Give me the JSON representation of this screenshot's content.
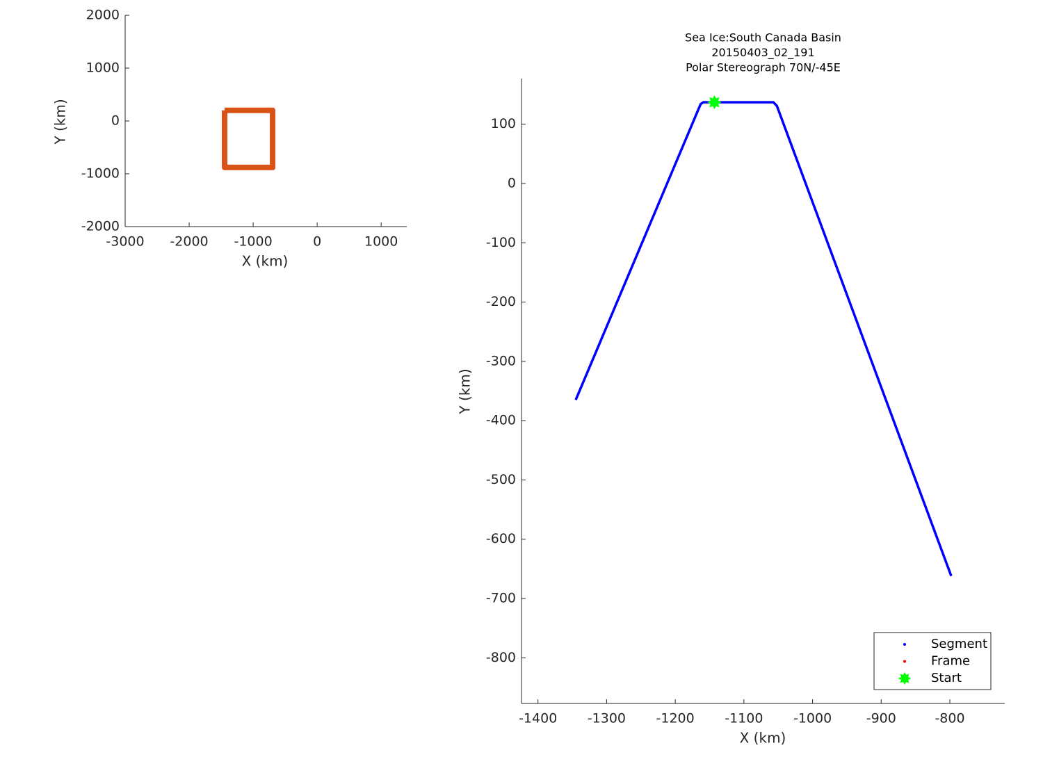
{
  "chart_data": [
    {
      "type": "line",
      "xlabel": "X (km)",
      "ylabel": "Y (km)",
      "xlim": [
        -3000,
        1400
      ],
      "ylim": [
        -2000,
        2000
      ],
      "xticks": [
        -3000,
        -2000,
        -1000,
        0,
        1000
      ],
      "yticks": [
        -2000,
        -1000,
        0,
        1000,
        2000
      ],
      "series": [
        {
          "color": "#d95319",
          "marker": "none",
          "x": [
            -1446,
            -696,
            -696,
            -1446,
            -1446
          ],
          "y": [
            200,
            200,
            -880,
            -880,
            200
          ]
        }
      ]
    },
    {
      "type": "line",
      "title": [
        "Sea Ice:South Canada Basin",
        "20150403_02_191",
        "Polar Stereograph 70N/-45E"
      ],
      "xlabel": "X (km)",
      "ylabel": "Y (km)",
      "xlim": [
        -1424,
        -720
      ],
      "ylim": [
        -877,
        177
      ],
      "xticks": [
        -1400,
        -1300,
        -1200,
        -1100,
        -1000,
        -900,
        -800
      ],
      "yticks": [
        -800,
        -700,
        -600,
        -500,
        -400,
        -300,
        -200,
        -100,
        0,
        100
      ],
      "legend": "lower right",
      "series": [
        {
          "name": "Segment",
          "color": "#0000ff",
          "marker": "dot",
          "x": [
            -1345,
            -1163,
            -1159,
            -1057,
            -1052,
            -798
          ],
          "y": [
            -365,
            134,
            137,
            137,
            131,
            -662
          ]
        },
        {
          "name": "Frame",
          "color": "#ff0000",
          "marker": "dot",
          "x": [],
          "y": []
        },
        {
          "name": "Start",
          "color": "#00ff00",
          "marker": "star",
          "x": [
            -1143
          ],
          "y": [
            137
          ]
        }
      ]
    }
  ]
}
